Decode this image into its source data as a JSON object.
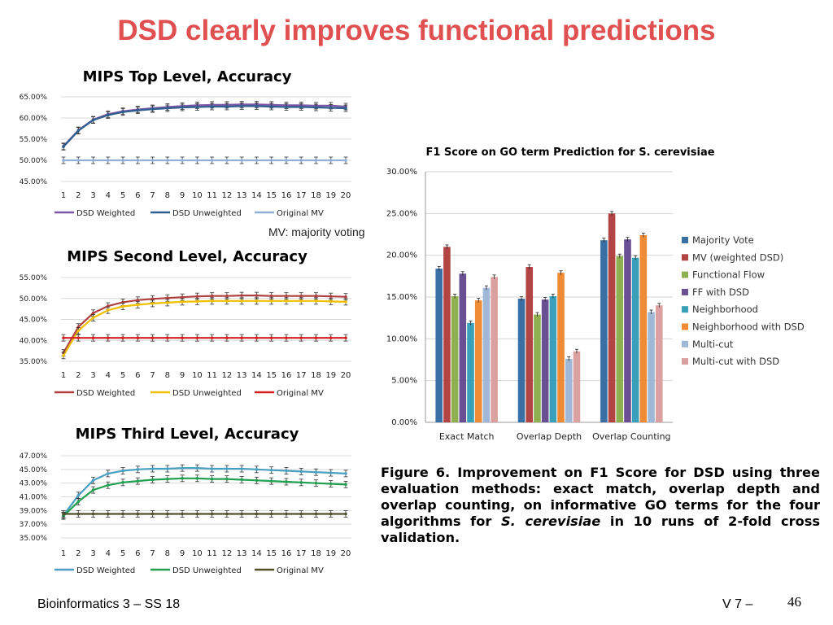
{
  "slide": {
    "title": "DSD clearly improves functional predictions",
    "mv_note": "MV: majority voting",
    "caption_bold": "Figure 6. Improvement on F1 Score for DSD using three evaluation methods: exact match, overlap depth and overlap counting, on informative GO terms for the four algorithms for",
    "caption_species": "S. cerevisiae",
    "caption_end": " in 10 runs of 2-fold cross validation.",
    "footer_left": "Bioinformatics 3 – SS 18",
    "footer_right": "V 7 –",
    "page_number": "46"
  },
  "chart_data": [
    {
      "type": "line",
      "title": "MIPS Top Level, Accuracy",
      "x": [
        1,
        2,
        3,
        4,
        5,
        6,
        7,
        8,
        9,
        10,
        11,
        12,
        13,
        14,
        15,
        16,
        17,
        18,
        19,
        20
      ],
      "yticks": [
        "65.00%",
        "60.00%",
        "55.00%",
        "50.00%",
        "45.00%"
      ],
      "ylim": [
        45,
        65
      ],
      "series": [
        {
          "name": "DSD Weighted",
          "color": "#7b56a6",
          "values": [
            53.3,
            57.1,
            59.6,
            60.9,
            61.6,
            62.0,
            62.3,
            62.6,
            62.8,
            63.0,
            63.1,
            63.1,
            63.2,
            63.2,
            63.1,
            63.0,
            63.0,
            62.9,
            62.9,
            62.7
          ]
        },
        {
          "name": "DSD Unweighted",
          "color": "#2f5f8f",
          "values": [
            53.2,
            57.0,
            59.5,
            60.7,
            61.4,
            61.8,
            62.1,
            62.3,
            62.5,
            62.6,
            62.7,
            62.7,
            62.8,
            62.8,
            62.7,
            62.6,
            62.6,
            62.5,
            62.4,
            62.3
          ]
        },
        {
          "name": "Original MV",
          "color": "#8fb0d8",
          "values": [
            50.0,
            50.0,
            50.0,
            50.0,
            50.0,
            50.0,
            50.0,
            50.0,
            50.0,
            50.0,
            50.0,
            50.0,
            50.0,
            50.0,
            50.0,
            50.0,
            50.0,
            50.0,
            50.0,
            50.0
          ]
        }
      ]
    },
    {
      "type": "line",
      "title": "MIPS Second Level, Accuracy",
      "x": [
        1,
        2,
        3,
        4,
        5,
        6,
        7,
        8,
        9,
        10,
        11,
        12,
        13,
        14,
        15,
        16,
        17,
        18,
        19,
        20
      ],
      "yticks": [
        "55.00%",
        "50.00%",
        "45.00%",
        "40.00%",
        "35.00%"
      ],
      "ylim": [
        35,
        55
      ],
      "series": [
        {
          "name": "DSD Weighted",
          "color": "#b04040",
          "values": [
            37.0,
            43.2,
            46.5,
            48.2,
            49.1,
            49.6,
            49.9,
            50.1,
            50.3,
            50.5,
            50.6,
            50.6,
            50.7,
            50.7,
            50.6,
            50.6,
            50.6,
            50.6,
            50.5,
            50.4
          ]
        },
        {
          "name": "DSD Unweighted",
          "color": "#f0c000",
          "values": [
            36.4,
            42.3,
            45.4,
            47.2,
            48.1,
            48.5,
            48.8,
            49.0,
            49.2,
            49.3,
            49.4,
            49.4,
            49.4,
            49.4,
            49.4,
            49.4,
            49.4,
            49.4,
            49.3,
            49.2
          ]
        },
        {
          "name": "Original MV",
          "color": "#d42020",
          "values": [
            40.6,
            40.6,
            40.6,
            40.6,
            40.6,
            40.6,
            40.6,
            40.6,
            40.6,
            40.6,
            40.6,
            40.6,
            40.6,
            40.6,
            40.6,
            40.6,
            40.6,
            40.6,
            40.6,
            40.6
          ]
        }
      ]
    },
    {
      "type": "line",
      "title": "MIPS Third Level, Accuracy",
      "x": [
        1,
        2,
        3,
        4,
        5,
        6,
        7,
        8,
        9,
        10,
        11,
        12,
        13,
        14,
        15,
        16,
        17,
        18,
        19,
        20
      ],
      "yticks": [
        "47.00%",
        "45.00%",
        "43.00%",
        "41.00%",
        "39.00%",
        "37.00%",
        "35.00%"
      ],
      "ylim": [
        35,
        47
      ],
      "series": [
        {
          "name": "DSD Weighted",
          "color": "#4aa0c0",
          "values": [
            38.3,
            41.2,
            43.4,
            44.4,
            44.8,
            45.0,
            45.1,
            45.1,
            45.2,
            45.2,
            45.1,
            45.1,
            45.1,
            45.0,
            44.9,
            44.8,
            44.7,
            44.6,
            44.5,
            44.4
          ]
        },
        {
          "name": "DSD Unweighted",
          "color": "#20a050",
          "values": [
            38.2,
            40.3,
            42.0,
            42.7,
            43.1,
            43.3,
            43.5,
            43.6,
            43.7,
            43.7,
            43.6,
            43.6,
            43.5,
            43.4,
            43.3,
            43.2,
            43.1,
            43.0,
            42.9,
            42.8
          ]
        },
        {
          "name": "Original MV",
          "color": "#50502a",
          "values": [
            38.5,
            38.5,
            38.5,
            38.5,
            38.5,
            38.5,
            38.5,
            38.5,
            38.5,
            38.5,
            38.5,
            38.5,
            38.5,
            38.5,
            38.5,
            38.5,
            38.5,
            38.5,
            38.5,
            38.5
          ]
        }
      ]
    },
    {
      "type": "bar",
      "title": "F1 Score on GO term Prediction for S. cerevisiae",
      "categories": [
        "Exact Match",
        "Overlap Depth",
        "Overlap Counting"
      ],
      "yticks": [
        "30.00%",
        "25.00%",
        "20.00%",
        "15.00%",
        "10.00%",
        "5.00%",
        "0.00%"
      ],
      "ylim": [
        0,
        30
      ],
      "series": [
        {
          "name": "Majority Vote",
          "color": "#3a6fa5",
          "values": [
            18.4,
            14.8,
            21.8
          ]
        },
        {
          "name": "MV (weighted DSD)",
          "color": "#b24543",
          "values": [
            21.0,
            18.6,
            25.0
          ]
        },
        {
          "name": "Functional Flow",
          "color": "#8fb050",
          "values": [
            15.1,
            12.9,
            19.9
          ]
        },
        {
          "name": "FF with DSD",
          "color": "#6a4f92",
          "values": [
            17.8,
            14.7,
            21.9
          ]
        },
        {
          "name": "Neighborhood",
          "color": "#3a9fb8",
          "values": [
            11.9,
            15.1,
            19.7
          ]
        },
        {
          "name": "Neighborhood with DSD",
          "color": "#ef8a35",
          "values": [
            14.6,
            17.9,
            22.4
          ]
        },
        {
          "name": "Multi-cut",
          "color": "#9fb8d8",
          "values": [
            16.1,
            7.6,
            13.2
          ]
        },
        {
          "name": "Multi-cut with DSD",
          "color": "#dba0a0",
          "values": [
            17.4,
            8.5,
            14.0
          ]
        }
      ]
    }
  ]
}
